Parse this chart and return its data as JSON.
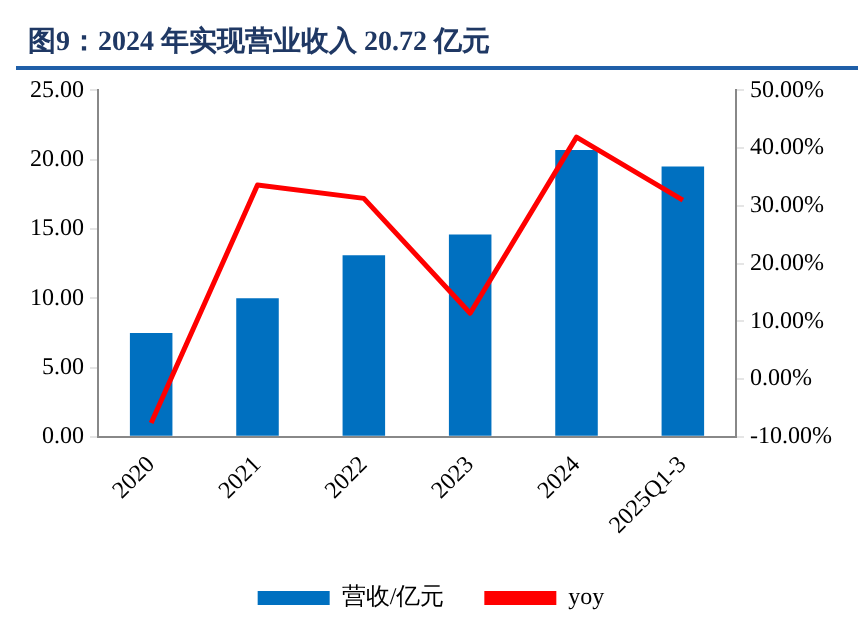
{
  "chart_data": {
    "type": "bar",
    "title": "图9：2024 年实现营业收入 20.72 亿元",
    "categories": [
      "2020",
      "2021",
      "2022",
      "2023",
      "2024",
      "2025Q1-3"
    ],
    "series": [
      {
        "name": "营收/亿元",
        "color": "#0070c0",
        "values": [
          7.5,
          10.0,
          13.1,
          14.6,
          20.7,
          19.5
        ]
      },
      {
        "name": "yoy",
        "type": "line",
        "axis": "y2",
        "color": "#ff0000",
        "values": [
          -7.6,
          33.6,
          31.3,
          11.4,
          41.9,
          31.0
        ]
      }
    ],
    "ylim": [
      0,
      25
    ],
    "yticks": [
      {
        "value": 0,
        "label": "0.00"
      },
      {
        "value": 5,
        "label": "5.00"
      },
      {
        "value": 10,
        "label": "10.00"
      },
      {
        "value": 15,
        "label": "15.00"
      },
      {
        "value": 20,
        "label": "20.00"
      },
      {
        "value": 25,
        "label": "25.00"
      }
    ],
    "y2lim": [
      -10,
      50
    ],
    "y2ticks": [
      {
        "value": -10,
        "label": "-10.00%"
      },
      {
        "value": 0,
        "label": "0.00%"
      },
      {
        "value": 10,
        "label": "10.00%"
      },
      {
        "value": 20,
        "label": "20.00%"
      },
      {
        "value": 30,
        "label": "30.00%"
      },
      {
        "value": 40,
        "label": "40.00%"
      },
      {
        "value": 50,
        "label": "50.00%"
      }
    ],
    "grid": false,
    "legend": "bottom",
    "marker": "none",
    "line_style": "solid"
  }
}
